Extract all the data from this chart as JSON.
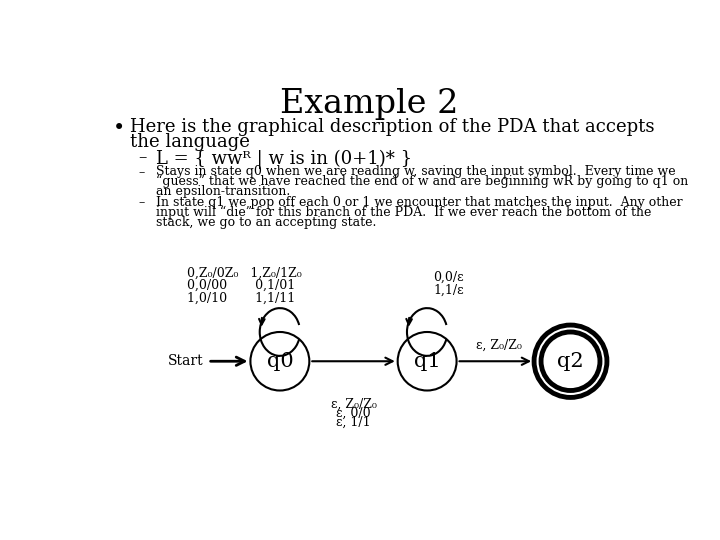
{
  "title": "Example 2",
  "bullet_line1": "Here is the graphical description of the PDA that accepts",
  "bullet_line2": "the language",
  "sub1": "L = { wwᴿ | w is in (0+1)* }",
  "sub2_line1": "Stays in state q0 when we are reading w, saving the input symbol.  Every time we",
  "sub2_line2": "“guess” that we have reached the end of w and are beginning wR by going to q1 on",
  "sub2_line3": "an epsilon-transition.",
  "sub3_line1": "In state q1 we pop off each 0 or 1 we encounter that matches the input.  Any other",
  "sub3_line2": "input will “die” for this branch of the PDA.  If we ever reach the bottom of the",
  "sub3_line3": "stack, we go to an accepting state.",
  "q0_label": "q0",
  "q1_label": "q1",
  "q2_label": "q2",
  "q0_self_l1": "0,Z₀/0Z₀   1,Z₀/1Z₀",
  "q0_self_l2": "0,0/00       0,1/01",
  "q0_self_l3": "1,0/10       1,1/11",
  "q1_self_l1": "0,0/ε",
  "q1_self_l2": "1,1/ε",
  "q0q1_l1": "ε, Z₀/Z₀",
  "q0q1_l2": "ε, 0/0",
  "q0q1_l3": "ε, 1/1",
  "q1q2_l": "ε, Z₀/Z₀",
  "start_label": "Start",
  "bg_color": "#ffffff",
  "text_color": "#000000",
  "title_fontsize": 24,
  "body_fontsize": 13,
  "small_fontsize": 9,
  "state_fontsize": 15,
  "label_fontsize": 9,
  "dash_fontsize": 12
}
